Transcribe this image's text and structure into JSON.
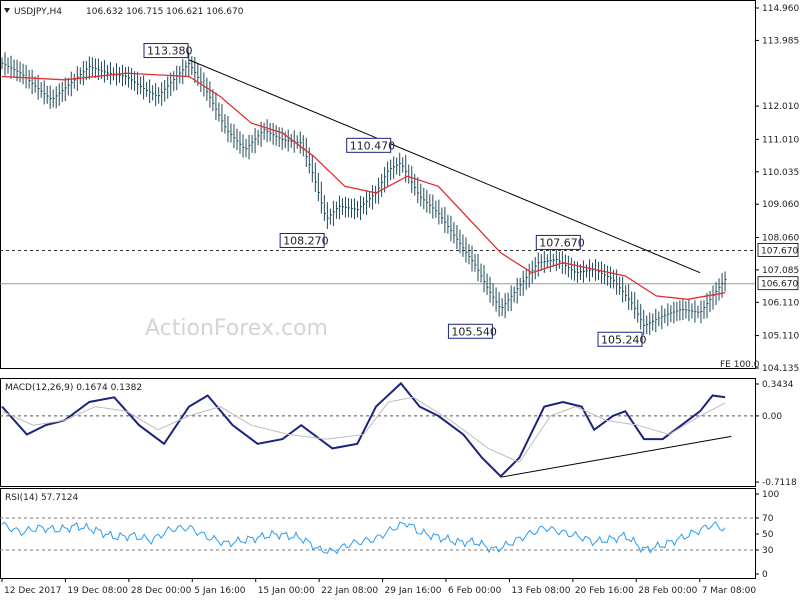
{
  "header": {
    "symbol": "USDJPY,H4",
    "ohlc": "106.632 106.715 106.621 106.670"
  },
  "watermark": "ActionForex.com",
  "fe_label": "FE 100.0",
  "colors": {
    "candles": "#1e4a5a",
    "ma": "#e03030",
    "macd": "#1a237e",
    "signal": "#bdbdbd",
    "rsi": "#2a9df4",
    "trendline": "#000000"
  },
  "chart_data": [
    {
      "type": "candlestick",
      "title": "USDJPY,H4",
      "yticks": [
        "114.960",
        "113.985",
        "112.010",
        "111.010",
        "110.035",
        "109.060",
        "108.060",
        "107.085",
        "106.110",
        "105.110",
        "104.135"
      ],
      "ylim": [
        104.135,
        114.96
      ],
      "xticks": [
        "12 Dec 2017",
        "19 Dec 08:00",
        "28 Dec 00:00",
        "5 Jan 16:00",
        "15 Jan 00:00",
        "22 Jan 08:00",
        "29 Jan 16:00",
        "6 Feb 00:00",
        "13 Feb 08:00",
        "20 Feb 16:00",
        "28 Feb 00:00",
        "7 Mar 08:00"
      ],
      "price_path": [
        [
          0,
          113.3
        ],
        [
          3,
          113.0
        ],
        [
          6,
          112.5
        ],
        [
          8,
          112.2
        ],
        [
          11,
          112.7
        ],
        [
          14,
          113.2
        ],
        [
          17,
          113.0
        ],
        [
          20,
          112.9
        ],
        [
          23,
          112.5
        ],
        [
          25,
          112.3
        ],
        [
          28,
          112.9
        ],
        [
          30,
          113.3
        ],
        [
          33,
          112.4
        ],
        [
          36,
          111.3
        ],
        [
          39,
          110.7
        ],
        [
          42,
          111.3
        ],
        [
          45,
          111.0
        ],
        [
          48,
          110.9
        ],
        [
          50,
          109.9
        ],
        [
          52,
          108.6
        ],
        [
          54,
          109.0
        ],
        [
          57,
          108.9
        ],
        [
          60,
          109.4
        ],
        [
          62,
          110.1
        ],
        [
          64,
          110.3
        ],
        [
          67,
          109.3
        ],
        [
          70,
          108.8
        ],
        [
          73,
          108.0
        ],
        [
          76,
          107.2
        ],
        [
          78,
          106.5
        ],
        [
          80,
          105.9
        ],
        [
          83,
          106.6
        ],
        [
          86,
          107.3
        ],
        [
          89,
          107.4
        ],
        [
          92,
          107.0
        ],
        [
          95,
          107.1
        ],
        [
          98,
          106.8
        ],
        [
          101,
          106.1
        ],
        [
          103,
          105.4
        ],
        [
          106,
          105.7
        ],
        [
          109,
          105.9
        ],
        [
          112,
          105.8
        ],
        [
          114,
          106.3
        ],
        [
          116,
          106.8
        ]
      ],
      "ma_path": [
        [
          0,
          112.9
        ],
        [
          10,
          112.8
        ],
        [
          20,
          113.0
        ],
        [
          30,
          112.9
        ],
        [
          35,
          112.3
        ],
        [
          40,
          111.5
        ],
        [
          45,
          111.2
        ],
        [
          50,
          110.5
        ],
        [
          55,
          109.6
        ],
        [
          60,
          109.4
        ],
        [
          65,
          109.9
        ],
        [
          70,
          109.6
        ],
        [
          75,
          108.6
        ],
        [
          80,
          107.6
        ],
        [
          85,
          107.0
        ],
        [
          90,
          107.3
        ],
        [
          95,
          107.1
        ],
        [
          100,
          106.9
        ],
        [
          105,
          106.3
        ],
        [
          110,
          106.2
        ],
        [
          116,
          106.4
        ]
      ],
      "annotations": [
        {
          "label": "113.380",
          "x": 30,
          "y": 113.38
        },
        {
          "label": "110.470",
          "x": 63,
          "y": 110.47
        },
        {
          "label": "108.270",
          "x": 52,
          "y": 108.27
        },
        {
          "label": "107.670",
          "x": 87,
          "y": 107.67
        },
        {
          "label": "105.540",
          "x": 79,
          "y": 105.54
        },
        {
          "label": "105.240",
          "x": 103,
          "y": 105.24
        }
      ],
      "levels": [
        {
          "label": "107.670",
          "value": 107.67,
          "style": "dashed"
        },
        {
          "label": "106.670",
          "value": 106.67,
          "style": "solid"
        }
      ],
      "trendline": {
        "from": [
          30,
          113.4
        ],
        "to": [
          112,
          107.0
        ]
      }
    },
    {
      "type": "line",
      "title": "MACD(12,26,9) 0.1674 0.1382",
      "yticks": [
        "0.3434",
        "0.00",
        "-0.7118"
      ],
      "ylim": [
        -0.7118,
        0.3434
      ],
      "series": [
        {
          "name": "MACD",
          "values": [
            [
              0,
              0.1
            ],
            [
              4,
              -0.2
            ],
            [
              7,
              -0.1
            ],
            [
              10,
              -0.05
            ],
            [
              14,
              0.15
            ],
            [
              18,
              0.2
            ],
            [
              22,
              -0.1
            ],
            [
              26,
              -0.3
            ],
            [
              30,
              0.1
            ],
            [
              33,
              0.22
            ],
            [
              37,
              -0.1
            ],
            [
              41,
              -0.3
            ],
            [
              45,
              -0.25
            ],
            [
              48,
              -0.1
            ],
            [
              53,
              -0.35
            ],
            [
              57,
              -0.3
            ],
            [
              60,
              0.1
            ],
            [
              64,
              0.35
            ],
            [
              67,
              0.1
            ],
            [
              70,
              0.0
            ],
            [
              74,
              -0.2
            ],
            [
              77,
              -0.45
            ],
            [
              80,
              -0.65
            ],
            [
              83,
              -0.45
            ],
            [
              87,
              0.1
            ],
            [
              90,
              0.15
            ],
            [
              93,
              0.1
            ],
            [
              95,
              -0.15
            ],
            [
              98,
              0.0
            ],
            [
              100,
              0.05
            ],
            [
              103,
              -0.25
            ],
            [
              106,
              -0.25
            ],
            [
              109,
              -0.1
            ],
            [
              112,
              0.05
            ],
            [
              114,
              0.22
            ],
            [
              116,
              0.2
            ]
          ]
        },
        {
          "name": "Signal",
          "values": [
            [
              0,
              0.05
            ],
            [
              5,
              -0.1
            ],
            [
              10,
              -0.05
            ],
            [
              15,
              0.1
            ],
            [
              20,
              0.05
            ],
            [
              25,
              -0.15
            ],
            [
              30,
              0.0
            ],
            [
              35,
              0.1
            ],
            [
              40,
              -0.1
            ],
            [
              46,
              -0.2
            ],
            [
              52,
              -0.25
            ],
            [
              58,
              -0.2
            ],
            [
              62,
              0.15
            ],
            [
              66,
              0.2
            ],
            [
              72,
              -0.05
            ],
            [
              78,
              -0.35
            ],
            [
              83,
              -0.5
            ],
            [
              88,
              0.0
            ],
            [
              92,
              0.1
            ],
            [
              97,
              -0.05
            ],
            [
              102,
              -0.1
            ],
            [
              107,
              -0.2
            ],
            [
              112,
              0.0
            ],
            [
              116,
              0.14
            ]
          ]
        }
      ],
      "trendline": {
        "from": [
          80,
          -0.66
        ],
        "to": [
          117,
          -0.22
        ]
      }
    },
    {
      "type": "line",
      "title": "RSI(14) 57.7124",
      "yticks": [
        "100",
        "70",
        "50",
        "30",
        "0"
      ],
      "ylim": [
        0,
        100
      ],
      "levels": [
        70,
        30
      ],
      "series": [
        {
          "name": "RSI",
          "values": [
            [
              0,
              62
            ],
            [
              3,
              52
            ],
            [
              6,
              58
            ],
            [
              9,
              55
            ],
            [
              12,
              60
            ],
            [
              15,
              55
            ],
            [
              18,
              46
            ],
            [
              21,
              48
            ],
            [
              24,
              42
            ],
            [
              27,
              56
            ],
            [
              30,
              58
            ],
            [
              33,
              46
            ],
            [
              36,
              38
            ],
            [
              40,
              44
            ],
            [
              44,
              50
            ],
            [
              48,
              45
            ],
            [
              51,
              30
            ],
            [
              53,
              28
            ],
            [
              56,
              38
            ],
            [
              60,
              44
            ],
            [
              63,
              58
            ],
            [
              65,
              64
            ],
            [
              67,
              52
            ],
            [
              70,
              46
            ],
            [
              73,
              40
            ],
            [
              76,
              40
            ],
            [
              79,
              30
            ],
            [
              81,
              36
            ],
            [
              84,
              48
            ],
            [
              87,
              58
            ],
            [
              90,
              52
            ],
            [
              93,
              46
            ],
            [
              95,
              40
            ],
            [
              98,
              44
            ],
            [
              100,
              48
            ],
            [
              103,
              30
            ],
            [
              106,
              36
            ],
            [
              109,
              45
            ],
            [
              112,
              55
            ],
            [
              114,
              62
            ],
            [
              116,
              56
            ]
          ]
        }
      ]
    }
  ]
}
